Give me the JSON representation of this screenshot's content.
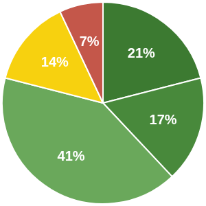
{
  "chart_data": {
    "type": "pie",
    "values": [
      21,
      17,
      41,
      14,
      7
    ],
    "value_labels": [
      "21%",
      "17%",
      "41%",
      "14%",
      "7%"
    ],
    "colors": [
      "#3c7a31",
      "#48893b",
      "#6aa85b",
      "#f7d10f",
      "#c4574a"
    ],
    "data_labels": true
  }
}
